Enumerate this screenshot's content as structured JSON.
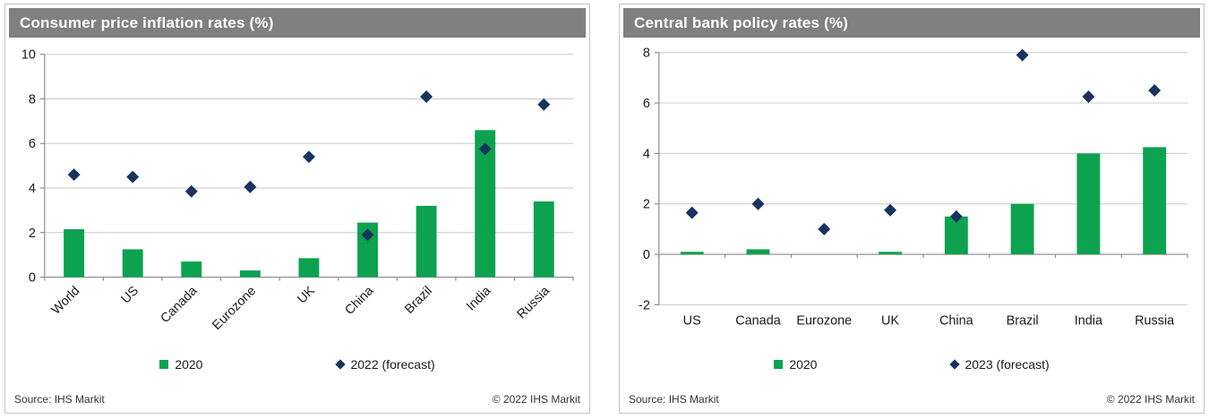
{
  "colors": {
    "bar_green": "#0ca24f",
    "point_navy": "#17335f",
    "title_bar_bg": "#808080",
    "title_bar_text": "#ffffff",
    "gridline": "#c9c9c9",
    "axis": "#8c8c8c",
    "axis_text": "#1a1a1a",
    "panel_border": "#c3c3c3"
  },
  "chart_data": [
    {
      "type": "bar",
      "title": "Consumer price inflation rates (%)",
      "categories": [
        "World",
        "US",
        "Canada",
        "Eurozone",
        "UK",
        "China",
        "Brazil",
        "India",
        "Russia"
      ],
      "series": [
        {
          "name": "2020",
          "type": "bar",
          "values": [
            2.15,
            1.25,
            0.7,
            0.3,
            0.85,
            2.45,
            3.2,
            6.6,
            3.4
          ]
        },
        {
          "name": "2022 (forecast)",
          "type": "scatter",
          "values": [
            4.6,
            4.5,
            3.85,
            4.05,
            5.4,
            1.9,
            8.1,
            5.75,
            7.75
          ]
        }
      ],
      "xlabel": "",
      "ylabel": "",
      "ylim": [
        0,
        10
      ],
      "yticks": [
        0,
        2,
        4,
        6,
        8,
        10
      ],
      "grid": true,
      "legend_position": "bottom",
      "x_label_rotation": -45,
      "source": "Source: IHS Markit",
      "copyright": "© 2022 IHS Markit"
    },
    {
      "type": "bar",
      "title": "Central bank policy rates (%)",
      "categories": [
        "US",
        "Canada",
        "Eurozone",
        "UK",
        "China",
        "Brazil",
        "India",
        "Russia"
      ],
      "series": [
        {
          "name": "2020",
          "type": "bar",
          "values": [
            0.1,
            0.2,
            0.0,
            0.1,
            1.5,
            2.0,
            4.0,
            4.25
          ]
        },
        {
          "name": "2023 (forecast)",
          "type": "scatter",
          "values": [
            1.65,
            2.0,
            1.0,
            1.75,
            1.5,
            7.9,
            6.25,
            6.5
          ]
        }
      ],
      "xlabel": "",
      "ylabel": "",
      "ylim": [
        -2,
        8
      ],
      "yticks": [
        -2,
        0,
        2,
        4,
        6,
        8
      ],
      "grid": true,
      "legend_position": "bottom",
      "x_label_rotation": 0,
      "source": "Source: IHS Markit",
      "copyright": "© 2022 IHS Markit"
    }
  ]
}
